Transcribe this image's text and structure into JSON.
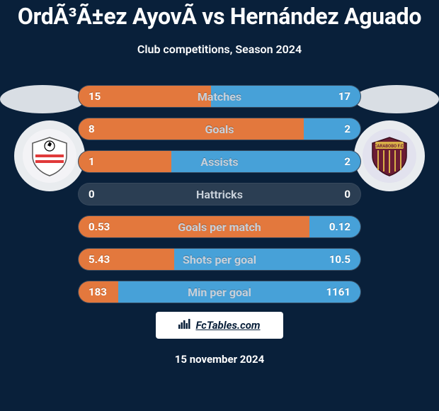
{
  "colors": {
    "page_bg": "#09203a",
    "text_white": "#ffffff",
    "text_gray": "#c7d0da",
    "oval_fill": "#d9dee4",
    "badge_bg": "#e9ecef",
    "row_bg": "#2b3e53",
    "bar_left": "#e3783d",
    "bar_right": "#47a1d8",
    "footer_logo_bg": "#ffffff",
    "footer_logo_text": "#09203a"
  },
  "title": "OrdÃ³Ã±ez AyovÃ vs Hernández Aguado",
  "subtitle": "Club competitions, Season 2024",
  "clubs": {
    "left": {
      "name": "estudiantes-de-merida",
      "badge_fill": "#f3f3f6",
      "accent": "#e03a3a"
    },
    "right": {
      "name": "carabobo-fc",
      "badge_fill": "#e2e2ee",
      "accent": "#6b1d34"
    }
  },
  "stats": [
    {
      "label": "Matches",
      "left_text": "15",
      "right_text": "17",
      "left_pct": 47,
      "right_pct": 53
    },
    {
      "label": "Goals",
      "left_text": "8",
      "right_text": "2",
      "left_pct": 80,
      "right_pct": 20
    },
    {
      "label": "Assists",
      "left_text": "1",
      "right_text": "2",
      "left_pct": 33,
      "right_pct": 67
    },
    {
      "label": "Hattricks",
      "left_text": "0",
      "right_text": "0",
      "left_pct": 0,
      "right_pct": 0
    },
    {
      "label": "Goals per match",
      "left_text": "0.53",
      "right_text": "0.12",
      "left_pct": 82,
      "right_pct": 18
    },
    {
      "label": "Shots per goal",
      "left_text": "5.43",
      "right_text": "10.5",
      "left_pct": 34,
      "right_pct": 66
    },
    {
      "label": "Min per goal",
      "left_text": "183",
      "right_text": "1161",
      "left_pct": 14,
      "right_pct": 86
    }
  ],
  "footer": {
    "brand": "FcTables.com",
    "date": "15 november 2024"
  }
}
